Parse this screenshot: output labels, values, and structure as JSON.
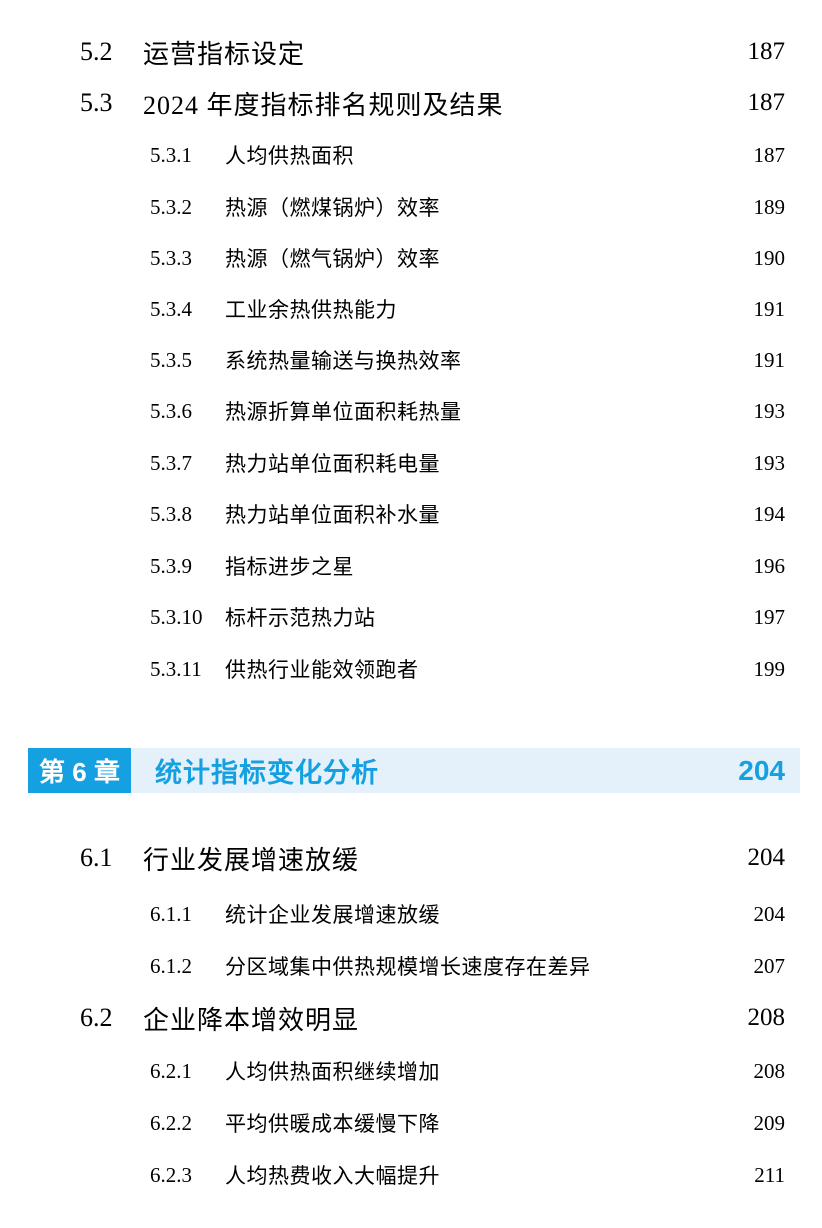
{
  "colors": {
    "accent_blue": "#14A0E1",
    "chapter_bar_bg": "#E4F1FA",
    "body_text": "#000000"
  },
  "toc": {
    "entries": [
      {
        "type": "section",
        "num": "5.2",
        "title": "运营指标设定",
        "page": "187"
      },
      {
        "type": "section",
        "num": "5.3",
        "title": "2024 年度指标排名规则及结果",
        "page": "187"
      },
      {
        "type": "subsection",
        "num": "5.3.1",
        "title": "人均供热面积",
        "page": "187"
      },
      {
        "type": "subsection",
        "num": "5.3.2",
        "title": "热源（燃煤锅炉）效率",
        "page": "189"
      },
      {
        "type": "subsection",
        "num": "5.3.3",
        "title": "热源（燃气锅炉）效率",
        "page": "190"
      },
      {
        "type": "subsection",
        "num": "5.3.4",
        "title": "工业余热供热能力",
        "page": "191"
      },
      {
        "type": "subsection",
        "num": "5.3.5",
        "title": "系统热量输送与换热效率",
        "page": "191"
      },
      {
        "type": "subsection",
        "num": "5.3.6",
        "title": "热源折算单位面积耗热量",
        "page": "193"
      },
      {
        "type": "subsection",
        "num": "5.3.7",
        "title": "热力站单位面积耗电量",
        "page": "193"
      },
      {
        "type": "subsection",
        "num": "5.3.8",
        "title": "热力站单位面积补水量",
        "page": "194"
      },
      {
        "type": "subsection",
        "num": "5.3.9",
        "title": "指标进步之星",
        "page": "196"
      },
      {
        "type": "subsection",
        "num": "5.3.10",
        "title": "标杆示范热力站",
        "page": "197"
      },
      {
        "type": "subsection",
        "num": "5.3.11",
        "title": "供热行业能效领跑者",
        "page": "199"
      },
      {
        "type": "chapter",
        "badge": "第 6 章",
        "title": "统计指标变化分析",
        "page": "204"
      },
      {
        "type": "section",
        "num": "6.1",
        "title": "行业发展增速放缓",
        "page": "204"
      },
      {
        "type": "subsection",
        "num": "6.1.1",
        "title": "统计企业发展增速放缓",
        "page": "204"
      },
      {
        "type": "subsection",
        "num": "6.1.2",
        "title": "分区域集中供热规模增长速度存在差异",
        "page": "207"
      },
      {
        "type": "section",
        "num": "6.2",
        "title": "企业降本增效明显",
        "page": "208"
      },
      {
        "type": "subsection",
        "num": "6.2.1",
        "title": "人均供热面积继续增加",
        "page": "208"
      },
      {
        "type": "subsection",
        "num": "6.2.2",
        "title": "平均供暖成本缓慢下降",
        "page": "209"
      },
      {
        "type": "subsection",
        "num": "6.2.3",
        "title": "人均热费收入大幅提升",
        "page": "211"
      }
    ]
  }
}
